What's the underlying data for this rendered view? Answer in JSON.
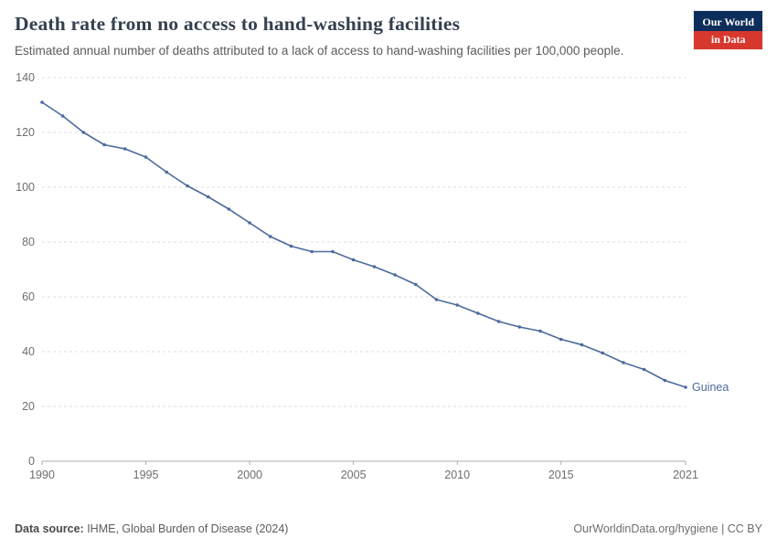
{
  "header": {
    "title": "Death rate from no access to hand-washing facilities",
    "subtitle": "Estimated annual number of deaths attributed to a lack of access to hand-washing facilities per 100,000 people.",
    "logo": {
      "line1": "Our World",
      "line2": "in Data"
    }
  },
  "chart_data": {
    "type": "line",
    "title": "Death rate from no access to hand-washing facilities",
    "xlabel": "",
    "ylabel": "",
    "xlim": [
      1990,
      2021
    ],
    "ylim": [
      0,
      140
    ],
    "x_ticks": [
      1990,
      1995,
      2000,
      2005,
      2010,
      2015,
      2021
    ],
    "y_ticks": [
      0,
      20,
      40,
      60,
      80,
      100,
      120,
      140
    ],
    "grid": true,
    "legend_position": "end-of-line",
    "series": [
      {
        "name": "Guinea",
        "color": "#4c6a9c",
        "x": [
          1990,
          1991,
          1992,
          1993,
          1994,
          1995,
          1996,
          1997,
          1998,
          1999,
          2000,
          2001,
          2002,
          2003,
          2004,
          2005,
          2006,
          2007,
          2008,
          2009,
          2010,
          2011,
          2012,
          2013,
          2014,
          2015,
          2016,
          2017,
          2018,
          2019,
          2020,
          2021
        ],
        "values": [
          131,
          126,
          120,
          115.5,
          114,
          111,
          105.5,
          100.5,
          96.5,
          92,
          87,
          82,
          78.5,
          76.5,
          76.5,
          73.5,
          71,
          68,
          64.5,
          59,
          57,
          54,
          51,
          49,
          47.5,
          44.5,
          42.5,
          39.5,
          36,
          33.5,
          29.5,
          27
        ]
      }
    ]
  },
  "footer": {
    "source_label": "Data source:",
    "source_text": " IHME, Global Burden of Disease (2024)",
    "credit": "OurWorldinData.org/hygiene | CC BY"
  }
}
